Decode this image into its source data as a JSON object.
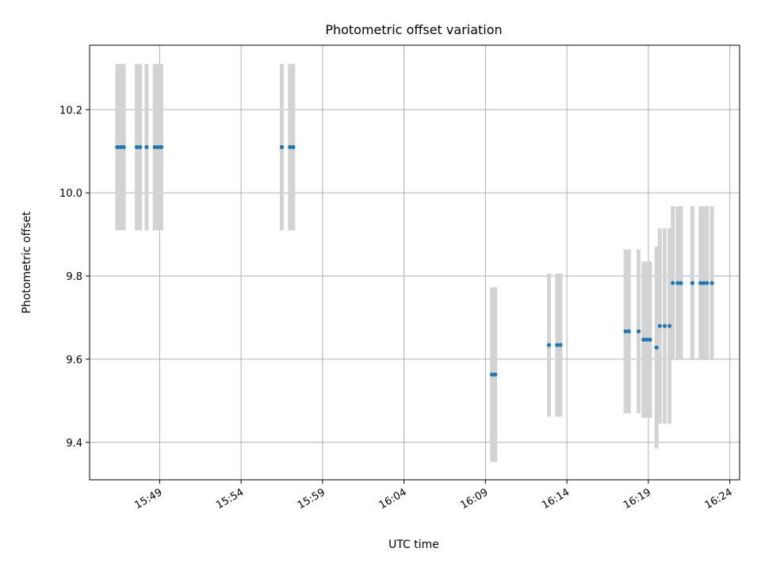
{
  "chart_data": {
    "type": "scatter",
    "title": "Photometric offset variation",
    "xlabel": "UTC time",
    "ylabel": "Photometric offset",
    "x_ticks": [
      {
        "label": "15:49",
        "minute": 949
      },
      {
        "label": "15:54",
        "minute": 954
      },
      {
        "label": "15:59",
        "minute": 959
      },
      {
        "label": "16:04",
        "minute": 964
      },
      {
        "label": "16:09",
        "minute": 969
      },
      {
        "label": "16:14",
        "minute": 974
      },
      {
        "label": "16:19",
        "minute": 979
      },
      {
        "label": "16:24",
        "minute": 984
      }
    ],
    "y_ticks": [
      {
        "label": "9.4",
        "value": 9.4
      },
      {
        "label": "9.6",
        "value": 9.6
      },
      {
        "label": "9.8",
        "value": 9.8
      },
      {
        "label": "10.0",
        "value": 10.0
      },
      {
        "label": "10.2",
        "value": 10.2
      }
    ],
    "xlim": [
      944.7,
      984.6
    ],
    "ylim": [
      9.31,
      10.355
    ],
    "grid": true,
    "colors": {
      "point": "#1f77b4",
      "errorbar": "#d3d3d3",
      "grid": "#b0b0b0"
    },
    "points": [
      {
        "x": 946.4,
        "y": 10.11,
        "err": 0.2
      },
      {
        "x": 946.6,
        "y": 10.11,
        "err": 0.2
      },
      {
        "x": 946.8,
        "y": 10.11,
        "err": 0.2
      },
      {
        "x": 947.6,
        "y": 10.11,
        "err": 0.2
      },
      {
        "x": 947.8,
        "y": 10.11,
        "err": 0.2
      },
      {
        "x": 948.2,
        "y": 10.11,
        "err": 0.2
      },
      {
        "x": 948.7,
        "y": 10.11,
        "err": 0.2
      },
      {
        "x": 948.9,
        "y": 10.11,
        "err": 0.2
      },
      {
        "x": 949.1,
        "y": 10.11,
        "err": 0.2
      },
      {
        "x": 956.5,
        "y": 10.11,
        "err": 0.2
      },
      {
        "x": 957.0,
        "y": 10.11,
        "err": 0.2
      },
      {
        "x": 957.2,
        "y": 10.11,
        "err": 0.2
      },
      {
        "x": 969.4,
        "y": 9.563,
        "err": 0.21
      },
      {
        "x": 969.6,
        "y": 9.563,
        "err": 0.21
      },
      {
        "x": 972.9,
        "y": 9.634,
        "err": 0.172
      },
      {
        "x": 973.4,
        "y": 9.634,
        "err": 0.172
      },
      {
        "x": 973.6,
        "y": 9.634,
        "err": 0.172
      },
      {
        "x": 977.6,
        "y": 9.667,
        "err": 0.197
      },
      {
        "x": 977.8,
        "y": 9.667,
        "err": 0.197
      },
      {
        "x": 978.4,
        "y": 9.667,
        "err": 0.197
      },
      {
        "x": 978.7,
        "y": 9.647,
        "err": 0.188
      },
      {
        "x": 978.9,
        "y": 9.647,
        "err": 0.188
      },
      {
        "x": 979.1,
        "y": 9.647,
        "err": 0.188
      },
      {
        "x": 979.5,
        "y": 9.628,
        "err": 0.243
      },
      {
        "x": 979.7,
        "y": 9.68,
        "err": 0.235
      },
      {
        "x": 980.0,
        "y": 9.68,
        "err": 0.235
      },
      {
        "x": 980.3,
        "y": 9.68,
        "err": 0.235
      },
      {
        "x": 980.5,
        "y": 9.783,
        "err": 0.185
      },
      {
        "x": 980.8,
        "y": 9.783,
        "err": 0.185
      },
      {
        "x": 981.0,
        "y": 9.783,
        "err": 0.185
      },
      {
        "x": 981.7,
        "y": 9.783,
        "err": 0.185
      },
      {
        "x": 982.2,
        "y": 9.783,
        "err": 0.185
      },
      {
        "x": 982.4,
        "y": 9.783,
        "err": 0.185
      },
      {
        "x": 982.6,
        "y": 9.783,
        "err": 0.185
      },
      {
        "x": 982.9,
        "y": 9.783,
        "err": 0.185
      }
    ]
  }
}
